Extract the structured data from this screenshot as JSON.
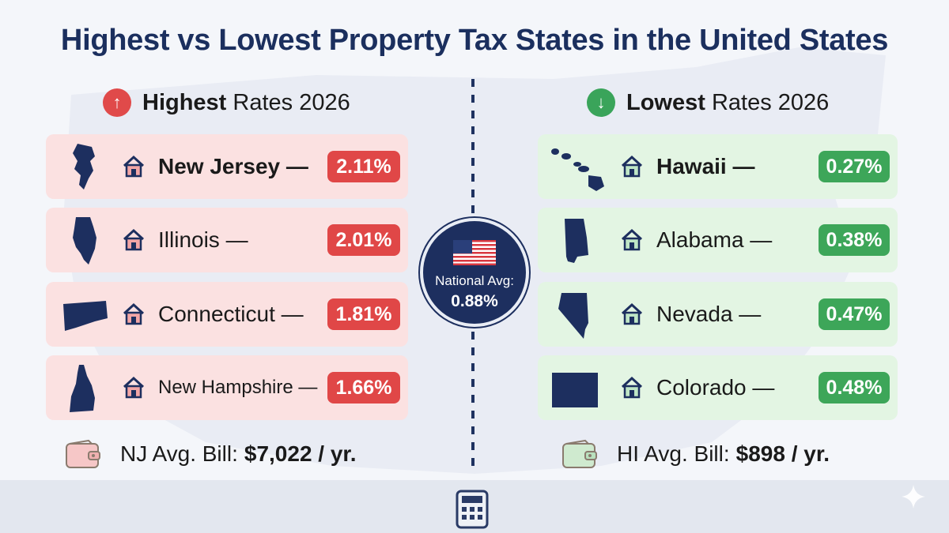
{
  "title": "Highest vs Lowest Property Tax States in the United States",
  "highest": {
    "arrow": "↑",
    "heading_bold": "Highest",
    "heading_rest": "Rates 2026",
    "icon": "arrow-up-icon",
    "color": "#e04747",
    "rows": [
      {
        "state": "New Jersey —",
        "rate": "2.11%",
        "icon": "new-jersey-icon"
      },
      {
        "state": "Illinois —",
        "rate": "2.01%",
        "icon": "illinois-icon"
      },
      {
        "state": "Connecticut —",
        "rate": "1.81%",
        "icon": "connecticut-icon"
      },
      {
        "state": "New Hampshire —",
        "rate": "1.66%",
        "icon": "new-hampshire-icon"
      }
    ],
    "bill_label": "NJ Avg. Bill:",
    "bill_value": "$7,022 / yr."
  },
  "lowest": {
    "arrow": "↓",
    "heading_bold": "Lowest",
    "heading_rest": "Rates 2026",
    "icon": "arrow-down-icon",
    "color": "#3da659",
    "rows": [
      {
        "state": "Hawaii —",
        "rate": "0.27%",
        "icon": "hawaii-icon"
      },
      {
        "state": "Alabama —",
        "rate": "0.38%",
        "icon": "alabama-icon"
      },
      {
        "state": "Nevada —",
        "rate": "0.47%",
        "icon": "nevada-icon"
      },
      {
        "state": "Colorado —",
        "rate": "0.48%",
        "icon": "colorado-icon"
      }
    ],
    "bill_label": "HI Avg. Bill:",
    "bill_value": "$898 / yr."
  },
  "national": {
    "label": "National Avg:",
    "value": "0.88%",
    "icon": "us-flag-icon"
  },
  "footer": {
    "icon": "calculator-icon",
    "corner_icon": "sparkle-icon"
  }
}
